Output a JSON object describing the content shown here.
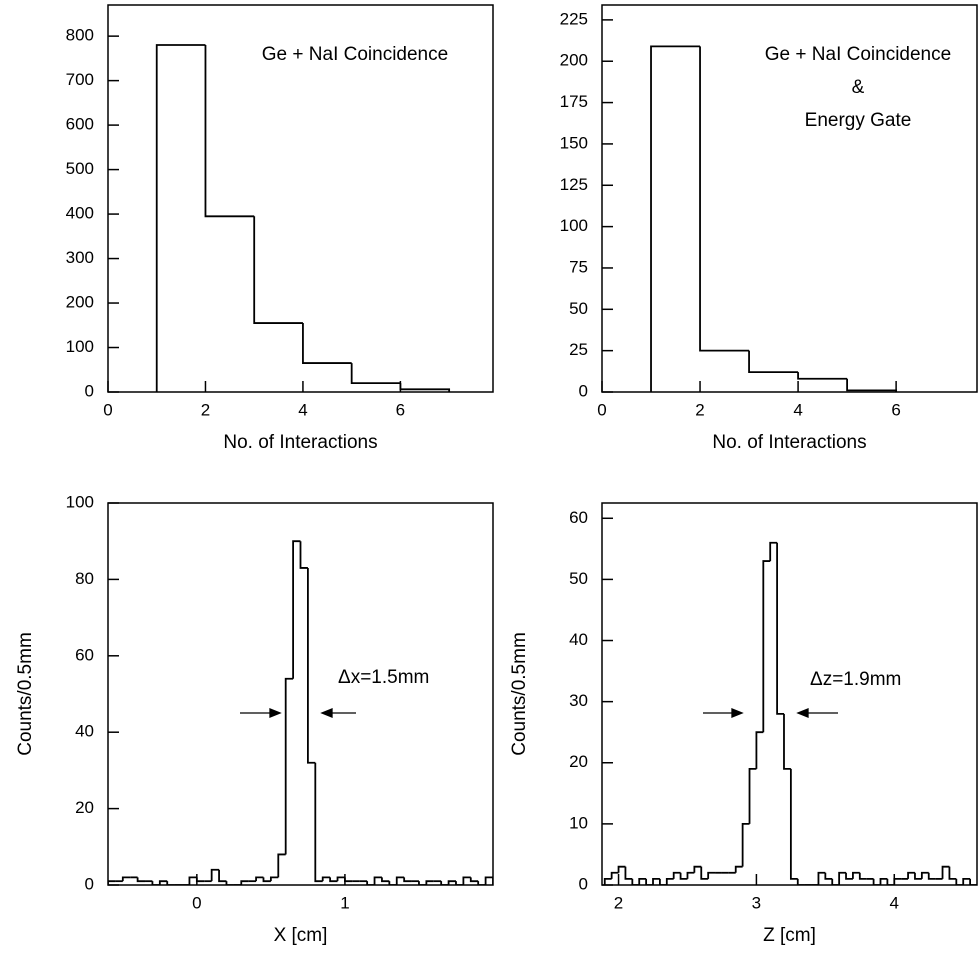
{
  "chart_data": [
    {
      "type": "histogram",
      "xlabel": "No. of Interactions",
      "annotations": [
        "Ge + NaI Coincidence"
      ],
      "bins": [
        1,
        2,
        3,
        4,
        5,
        6,
        7
      ],
      "values": [
        780,
        395,
        155,
        65,
        20,
        6
      ],
      "xlim": [
        0,
        7.9
      ],
      "ylim": [
        0,
        870
      ],
      "xticks": [
        0,
        2,
        4,
        6
      ],
      "yticks": [
        0,
        100,
        200,
        300,
        400,
        500,
        600,
        700,
        800
      ],
      "color": "#000000"
    },
    {
      "type": "histogram",
      "xlabel": "No. of Interactions",
      "annotations": [
        "Ge + NaI Coincidence",
        "&",
        "Energy Gate"
      ],
      "bins": [
        1,
        2,
        3,
        4,
        5,
        6
      ],
      "values": [
        209,
        25,
        12,
        8,
        1
      ],
      "xlim": [
        0,
        7.65
      ],
      "ylim": [
        0,
        234
      ],
      "xticks": [
        0,
        2,
        4,
        6
      ],
      "yticks": [
        0,
        25,
        50,
        75,
        100,
        125,
        150,
        175,
        200,
        225
      ],
      "color": "#000000"
    },
    {
      "type": "histogram",
      "xlabel": "X [cm]",
      "ylabel": "Counts/0.5mm",
      "annotations": [
        "Δx=1.5mm"
      ],
      "bins": [
        -0.6,
        -0.55,
        -0.5,
        -0.45,
        -0.4,
        -0.35,
        -0.3,
        -0.25,
        -0.2,
        -0.15,
        -0.1,
        -0.05,
        0,
        0.05,
        0.1,
        0.15,
        0.2,
        0.25,
        0.3,
        0.35,
        0.4,
        0.45,
        0.5,
        0.55,
        0.6,
        0.65,
        0.7,
        0.75,
        0.8,
        0.85,
        0.9,
        0.95,
        1,
        1.05,
        1.1,
        1.15,
        1.2,
        1.25,
        1.3,
        1.35,
        1.4,
        1.45,
        1.5,
        1.55,
        1.6,
        1.65,
        1.7,
        1.75,
        1.8,
        1.85,
        1.9,
        1.95,
        2
      ],
      "values": [
        1,
        1,
        2,
        2,
        1,
        1,
        0,
        1,
        0,
        0,
        0,
        2,
        1,
        1,
        4,
        1,
        0,
        0,
        1,
        1,
        2,
        1,
        2,
        8,
        54,
        90,
        83,
        32,
        1,
        2,
        1,
        2,
        1,
        1,
        1,
        0,
        2,
        1,
        0,
        2,
        1,
        1,
        0,
        1,
        1,
        0,
        1,
        0,
        2,
        1,
        0,
        2
      ],
      "xlim": [
        -0.6,
        2.0
      ],
      "ylim": [
        0,
        100
      ],
      "xticks": [
        0,
        1
      ],
      "yticks": [
        0,
        20,
        40,
        60,
        80,
        100
      ],
      "color": "#000000"
    },
    {
      "type": "histogram",
      "xlabel": "Z [cm]",
      "ylabel": "Counts/0.5mm",
      "annotations": [
        "Δz=1.9mm"
      ],
      "bins": [
        1.9,
        1.95,
        2,
        2.05,
        2.1,
        2.15,
        2.2,
        2.25,
        2.3,
        2.35,
        2.4,
        2.45,
        2.5,
        2.55,
        2.6,
        2.65,
        2.7,
        2.75,
        2.8,
        2.85,
        2.9,
        2.95,
        3,
        3.05,
        3.1,
        3.15,
        3.2,
        3.25,
        3.3,
        3.35,
        3.4,
        3.45,
        3.5,
        3.55,
        3.6,
        3.65,
        3.7,
        3.75,
        3.8,
        3.85,
        3.9,
        3.95,
        4,
        4.05,
        4.1,
        4.15,
        4.2,
        4.25,
        4.3,
        4.35,
        4.4,
        4.45,
        4.5,
        4.55,
        4.6
      ],
      "values": [
        1,
        2,
        3,
        1,
        0,
        1,
        0,
        1,
        0,
        1,
        2,
        1,
        2,
        3,
        1,
        2,
        2,
        2,
        2,
        3,
        10,
        19,
        25,
        53,
        56,
        28,
        19,
        1,
        0,
        0,
        0,
        2,
        1,
        0,
        2,
        1,
        2,
        1,
        1,
        0,
        1,
        0,
        1,
        1,
        2,
        1,
        2,
        1,
        1,
        3,
        1,
        0,
        1,
        0
      ],
      "xlim": [
        1.88,
        4.6
      ],
      "ylim": [
        0,
        62.5
      ],
      "xticks": [
        2,
        3,
        4
      ],
      "yticks": [
        0,
        10,
        20,
        30,
        40,
        50,
        60
      ],
      "color": "#000000"
    }
  ]
}
